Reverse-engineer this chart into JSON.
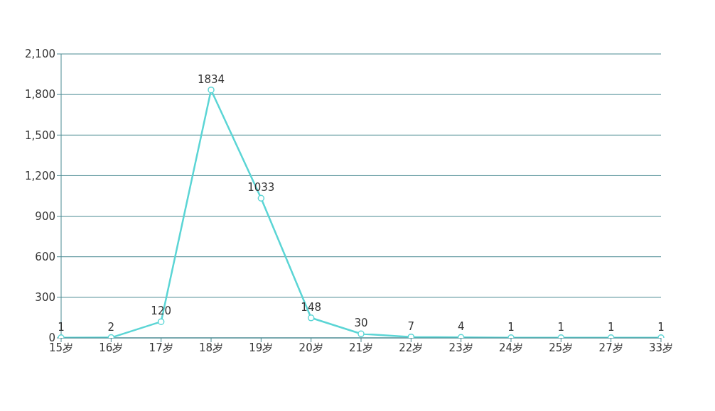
{
  "chart_data": {
    "type": "line",
    "categories": [
      "15岁",
      "16岁",
      "17岁",
      "18岁",
      "19岁",
      "20岁",
      "21岁",
      "22岁",
      "23岁",
      "24岁",
      "25岁",
      "27岁",
      "33岁"
    ],
    "series": [
      {
        "color": "#5bd5d5",
        "values": [
          1,
          2,
          120,
          1834,
          1033,
          148,
          30,
          7,
          4,
          1,
          1,
          1,
          1
        ]
      }
    ],
    "ylim": [
      0,
      2100
    ],
    "yticks": [
      {
        "value": 0,
        "label": "0"
      },
      {
        "value": 300,
        "label": "300"
      },
      {
        "value": 600,
        "label": "600"
      },
      {
        "value": 900,
        "label": "900"
      },
      {
        "value": 1200,
        "label": "1,200"
      },
      {
        "value": 1500,
        "label": "1,500"
      },
      {
        "value": 1800,
        "label": "1,800"
      },
      {
        "value": 2100,
        "label": "2,100"
      }
    ],
    "grid": "y",
    "data_labels": true,
    "marker": "circle",
    "line_style": "solid",
    "legend": false
  }
}
